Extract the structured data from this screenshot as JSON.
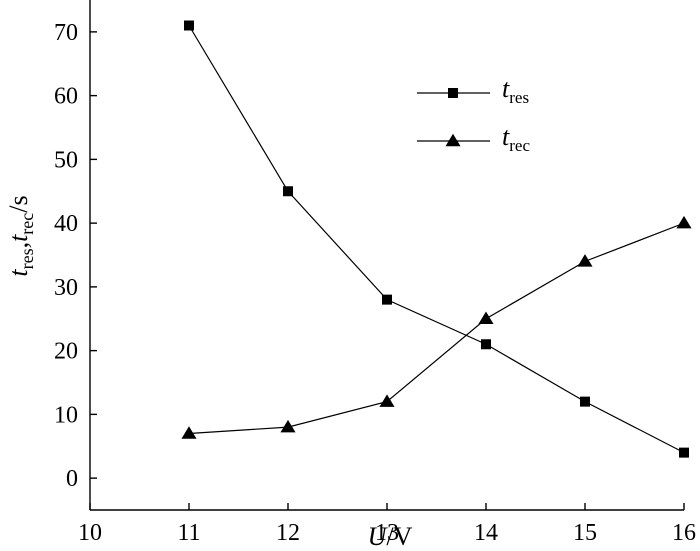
{
  "chart_data": {
    "type": "line",
    "xlabel_italic": "U",
    "xlabel_rest": "/V",
    "ylabel_parts": {
      "t1": "t",
      "sub1": "res",
      "comma": ",",
      "t2": "t",
      "sub2": "rec",
      "unit": "/s"
    },
    "xlim": [
      10,
      16
    ],
    "ylim": [
      -5,
      75
    ],
    "x_ticks": [
      10,
      11,
      12,
      13,
      14,
      15,
      16
    ],
    "y_ticks": [
      0,
      10,
      20,
      30,
      40,
      50,
      60,
      70
    ],
    "grid": false,
    "legend_position": "top-right",
    "series": [
      {
        "name": "t_res",
        "name_main": "t",
        "name_sub": "res",
        "marker": "square",
        "color": "#000000",
        "x": [
          11,
          12,
          13,
          14,
          15,
          16
        ],
        "y": [
          71,
          45,
          28,
          21,
          12,
          4
        ]
      },
      {
        "name": "t_rec",
        "name_main": "t",
        "name_sub": "rec",
        "marker": "triangle",
        "color": "#000000",
        "x": [
          11,
          12,
          13,
          14,
          15,
          16
        ],
        "y": [
          7,
          8,
          12,
          25,
          34,
          40
        ]
      }
    ]
  }
}
